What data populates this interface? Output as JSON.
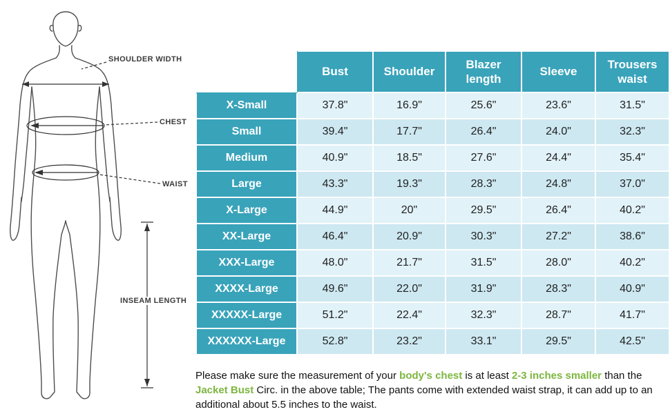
{
  "colors": {
    "header_bg": "#39a3ba",
    "row_light": "#e1f2f8",
    "row_dark": "#cde8f1",
    "highlight_green": "#7cb63e"
  },
  "diagram": {
    "labels": {
      "shoulder_width": "SHOULDER WIDTH",
      "chest": "CHEST",
      "waist": "WAIST",
      "inseam": "INSEAM LENGTH"
    }
  },
  "chart_data": {
    "type": "table",
    "columns": [
      "",
      "Bust",
      "Shoulder",
      "Blazer length",
      "Sleeve",
      "Trousers waist"
    ],
    "rows": [
      {
        "size": "X-Small",
        "values": [
          "37.8\"",
          "16.9\"",
          "25.6\"",
          "23.6\"",
          "31.5\""
        ]
      },
      {
        "size": "Small",
        "values": [
          "39.4\"",
          "17.7\"",
          "26.4\"",
          "24.0\"",
          "32.3\""
        ]
      },
      {
        "size": "Medium",
        "values": [
          "40.9\"",
          "18.5\"",
          "27.6\"",
          "24.4\"",
          "35.4\""
        ]
      },
      {
        "size": "Large",
        "values": [
          "43.3\"",
          "19.3\"",
          "28.3\"",
          "24.8\"",
          "37.0\""
        ]
      },
      {
        "size": "X-Large",
        "values": [
          "44.9\"",
          "20\"",
          "29.5\"",
          "26.4\"",
          "40.2\""
        ]
      },
      {
        "size": "XX-Large",
        "values": [
          "46.4\"",
          "20.9\"",
          "30.3\"",
          "27.2\"",
          "38.6\""
        ]
      },
      {
        "size": "XXX-Large",
        "values": [
          "48.0\"",
          "21.7\"",
          "31.5\"",
          "28.0\"",
          "40.2\""
        ]
      },
      {
        "size": "XXXX-Large",
        "values": [
          "49.6\"",
          "22.0\"",
          "31.9\"",
          "28.3\"",
          "40.9\""
        ]
      },
      {
        "size": "XXXXX-Large",
        "values": [
          "51.2\"",
          "22.4\"",
          "32.3\"",
          "28.7\"",
          "41.7\""
        ]
      },
      {
        "size": "XXXXXX-Large",
        "values": [
          "52.8\"",
          "23.2\"",
          "33.1\"",
          "29.5\"",
          "42.5\""
        ]
      }
    ]
  },
  "note": {
    "segments": [
      {
        "text": "Please make sure the measurement of your ",
        "highlight": false
      },
      {
        "text": "body's chest",
        "highlight": true
      },
      {
        "text": " is at least ",
        "highlight": false
      },
      {
        "text": "2-3 inches smaller",
        "highlight": true
      },
      {
        "text": " than the ",
        "highlight": false
      },
      {
        "text": "Jacket Bust",
        "highlight": true
      },
      {
        "text": " Circ. in the above table; The pants come with extended waist strap, it can add up to an additional about 5.5 inches to the waist.",
        "highlight": false
      }
    ]
  }
}
